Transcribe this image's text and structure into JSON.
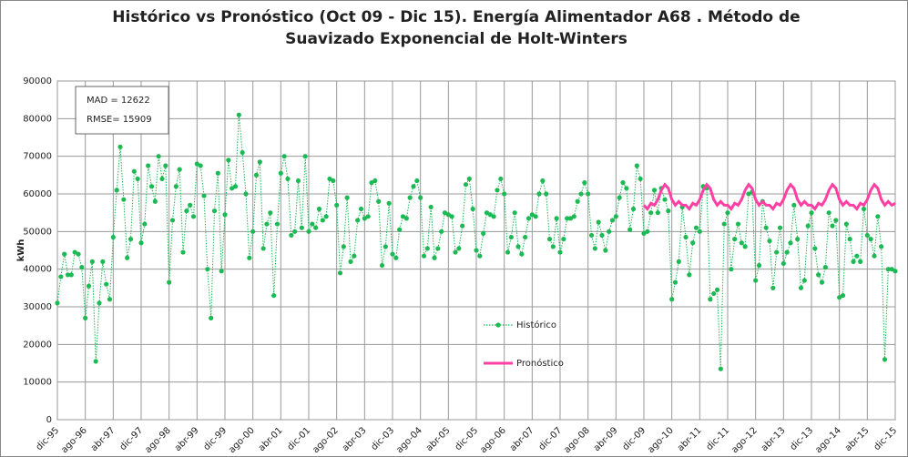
{
  "chart_data": {
    "type": "line",
    "title": "Histórico vs Pronóstico (Oct 09 - Dic 15).  Energía Alimentador  A68 . Método de Suavizado Exponencial de Holt-Winters",
    "ylabel": "kWh",
    "annotations": [
      "MAD = 12622",
      "RMSE= 15909"
    ],
    "categories": [
      "dic-95",
      null,
      null,
      null,
      null,
      null,
      null,
      null,
      "ago-96",
      null,
      null,
      null,
      null,
      null,
      null,
      null,
      "abr-97",
      null,
      null,
      null,
      null,
      null,
      null,
      null,
      "dic-97",
      null,
      null,
      null,
      null,
      null,
      null,
      null,
      "ago-98",
      null,
      null,
      null,
      null,
      null,
      null,
      null,
      "abr-99",
      null,
      null,
      null,
      null,
      null,
      null,
      null,
      "dic-99",
      null,
      null,
      null,
      null,
      null,
      null,
      null,
      "ago-00",
      null,
      null,
      null,
      null,
      null,
      null,
      null,
      "abr-01",
      null,
      null,
      null,
      null,
      null,
      null,
      null,
      "dic-01",
      null,
      null,
      null,
      null,
      null,
      null,
      null,
      "ago-02",
      null,
      null,
      null,
      null,
      null,
      null,
      null,
      "abr-03",
      null,
      null,
      null,
      null,
      null,
      null,
      null,
      "dic-03",
      null,
      null,
      null,
      null,
      null,
      null,
      null,
      "ago-04",
      null,
      null,
      null,
      null,
      null,
      null,
      null,
      "abr-05",
      null,
      null,
      null,
      null,
      null,
      null,
      null,
      "dic-05",
      null,
      null,
      null,
      null,
      null,
      null,
      null,
      "ago-06",
      null,
      null,
      null,
      null,
      null,
      null,
      null,
      "abr-07",
      null,
      null,
      null,
      null,
      null,
      null,
      null,
      "dic-07",
      null,
      null,
      null,
      null,
      null,
      null,
      null,
      "ago-08",
      null,
      null,
      null,
      null,
      null,
      null,
      null,
      "abr-09",
      null,
      null,
      null,
      null,
      null,
      null,
      null,
      "dic-09",
      null,
      null,
      null,
      null,
      null,
      null,
      null,
      "ago-10",
      null,
      null,
      null,
      null,
      null,
      null,
      null,
      "abr-11",
      null,
      null,
      null,
      null,
      null,
      null,
      null,
      "dic-11",
      null,
      null,
      null,
      null,
      null,
      null,
      null,
      "ago-12",
      null,
      null,
      null,
      null,
      null,
      null,
      null,
      "abr-13",
      null,
      null,
      null,
      null,
      null,
      null,
      null,
      "dic-13",
      null,
      null,
      null,
      null,
      null,
      null,
      null,
      "ago-14",
      null,
      null,
      null,
      null,
      null,
      null,
      null,
      "abr-15",
      null,
      null,
      null,
      null,
      null,
      null,
      null,
      "dic-15"
    ],
    "series": [
      {
        "name": "Histórico",
        "color": "#1db954",
        "values": [
          31000,
          38000,
          44000,
          38500,
          38500,
          44500,
          44000,
          40500,
          27000,
          35500,
          42000,
          15500,
          31000,
          42000,
          36000,
          32000,
          48500,
          61000,
          72500,
          58500,
          43000,
          48000,
          66000,
          64000,
          47000,
          52000,
          67500,
          62000,
          58000,
          70000,
          64000,
          67500,
          36500,
          53000,
          62000,
          66500,
          44500,
          55500,
          57000,
          54000,
          68000,
          67500,
          59500,
          40000,
          27000,
          55500,
          65500,
          39500,
          54500,
          69000,
          61500,
          62000,
          81000,
          71000,
          60000,
          43000,
          50000,
          65000,
          68500,
          45500,
          52000,
          55000,
          33000,
          52000,
          65500,
          70000,
          64000,
          49000,
          50000,
          63500,
          51000,
          70000,
          50000,
          52000,
          51000,
          56000,
          53000,
          54000,
          64000,
          63500,
          57000,
          39000,
          46000,
          59000,
          42000,
          43500,
          53000,
          56000,
          53500,
          54000,
          63000,
          63500,
          58000,
          41000,
          46000,
          57500,
          44000,
          43000,
          50500,
          54000,
          53500,
          59000,
          62000,
          63500,
          59000,
          43500,
          45500,
          56500,
          43000,
          45500,
          50000,
          55000,
          54500,
          54000,
          44500,
          45500,
          51500,
          62500,
          64000,
          56000,
          45000,
          43500,
          49500,
          55000,
          54500,
          54000,
          61000,
          64000,
          60000,
          44500,
          48500,
          55000,
          46000,
          44000,
          48500,
          53500,
          54500,
          54000,
          60000,
          63500,
          60000,
          48000,
          46000,
          53500,
          44500,
          48000,
          53500,
          53500,
          54000,
          58000,
          60000,
          63000,
          60000,
          49000,
          45500,
          52500,
          49000,
          45000,
          50000,
          53000,
          54000,
          59000,
          63000,
          61500,
          50500,
          56000,
          67500,
          64000,
          49500,
          50000,
          55000,
          61000,
          55000,
          61500,
          58500,
          55500,
          32000,
          36500,
          42000,
          56500,
          48500,
          38500,
          47000,
          51000,
          50000,
          62000,
          61500,
          32000,
          33500,
          34500,
          13500,
          52000,
          55000,
          40000,
          48000,
          52000,
          47000,
          46000,
          60000,
          60500,
          37000,
          41000,
          58000,
          51000,
          47500,
          35000,
          44500,
          51000,
          41500,
          44500,
          47000,
          57000,
          48000,
          35000,
          37000,
          51500,
          55000,
          45500,
          38500,
          36500,
          40500,
          55000,
          51500,
          53000,
          32500,
          33000,
          52000,
          48000,
          42000,
          43500,
          42000,
          56000,
          49000,
          48000,
          43500,
          54000,
          46000,
          16000,
          40000,
          40000,
          39500
        ]
      },
      {
        "name": "Pronóstico",
        "color": "#ff3fa4",
        "values": [
          null,
          null,
          null,
          null,
          null,
          null,
          null,
          null,
          null,
          null,
          null,
          null,
          null,
          null,
          null,
          null,
          null,
          null,
          null,
          null,
          null,
          null,
          null,
          null,
          null,
          null,
          null,
          null,
          null,
          null,
          null,
          null,
          null,
          null,
          null,
          null,
          null,
          null,
          null,
          null,
          null,
          null,
          null,
          null,
          null,
          null,
          null,
          null,
          null,
          null,
          null,
          null,
          null,
          null,
          null,
          null,
          null,
          null,
          null,
          null,
          null,
          null,
          null,
          null,
          null,
          null,
          null,
          null,
          null,
          null,
          null,
          null,
          null,
          null,
          null,
          null,
          null,
          null,
          null,
          null,
          null,
          null,
          null,
          null,
          null,
          null,
          null,
          null,
          null,
          null,
          null,
          null,
          null,
          null,
          null,
          null,
          null,
          null,
          null,
          null,
          null,
          null,
          null,
          null,
          null,
          null,
          null,
          null,
          null,
          null,
          null,
          null,
          null,
          null,
          null,
          null,
          null,
          null,
          null,
          null,
          null,
          null,
          null,
          null,
          null,
          null,
          null,
          null,
          null,
          null,
          null,
          null,
          null,
          null,
          null,
          null,
          null,
          null,
          null,
          null,
          null,
          null,
          null,
          null,
          null,
          null,
          null,
          null,
          null,
          null,
          null,
          null,
          null,
          null,
          null,
          null,
          null,
          null,
          null,
          null,
          null,
          null,
          null,
          null,
          null,
          null,
          null,
          null,
          57000,
          56000,
          57500,
          57000,
          58500,
          61000,
          62500,
          61500,
          58500,
          57000,
          58000,
          57000,
          57000,
          56000,
          57500,
          57000,
          58500,
          61000,
          62500,
          61500,
          58500,
          57000,
          58000,
          57000,
          57000,
          56000,
          57500,
          57000,
          58500,
          61000,
          62500,
          61500,
          58500,
          57000,
          58000,
          57000,
          57000,
          56000,
          57500,
          57000,
          58500,
          61000,
          62500,
          61500,
          58500,
          57000,
          58000,
          57000,
          57000,
          56000,
          57500,
          57000,
          58500,
          61000,
          62500,
          61500,
          58500,
          57000,
          58000,
          57000,
          57000,
          56000,
          57500,
          57000,
          58500,
          61000,
          62500,
          61500,
          58500,
          57000,
          58000,
          57000,
          57500
        ]
      }
    ],
    "ylim": [
      0,
      90000
    ],
    "yticks": [
      0,
      10000,
      20000,
      30000,
      40000,
      50000,
      60000,
      70000,
      80000,
      90000
    ],
    "grid": true
  }
}
